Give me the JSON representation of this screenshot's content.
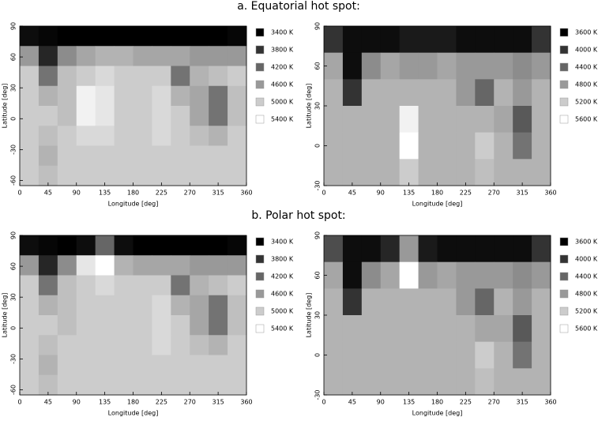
{
  "chart_data": [
    {
      "type": "heatmap",
      "title": "a. Equatorial hot spot:",
      "xlabel": "Longitude [deg]",
      "ylabel": "Latitude [deg]",
      "xlim": [
        0,
        360
      ],
      "xticks": [
        0,
        45,
        90,
        135,
        180,
        225,
        270,
        315,
        360
      ],
      "ylim": [
        -65,
        90
      ],
      "yticks": [
        -60,
        -30,
        0,
        30,
        60,
        90
      ],
      "zlim": [
        3400,
        5400
      ],
      "colorbar": [
        {
          "value": 3400,
          "label": "3400 K"
        },
        {
          "value": 3800,
          "label": "3800 K"
        },
        {
          "value": 4200,
          "label": "4200 K"
        },
        {
          "value": 4600,
          "label": "4600 K"
        },
        {
          "value": 5000,
          "label": "5000 K"
        },
        {
          "value": 5400,
          "label": "5400 K"
        }
      ],
      "z": [
        [
          3500,
          3450,
          3400,
          3400,
          3400,
          3400,
          3400,
          3400,
          3400,
          3400,
          3400,
          3450
        ],
        [
          4600,
          3700,
          4500,
          4700,
          4800,
          4800,
          4700,
          4700,
          4700,
          4600,
          4600,
          4600
        ],
        [
          5000,
          4300,
          4900,
          5000,
          5100,
          5000,
          5000,
          5000,
          4300,
          4800,
          4900,
          5000
        ],
        [
          5000,
          4800,
          4900,
          5300,
          5200,
          5000,
          5000,
          5100,
          4800,
          4700,
          4300,
          4900
        ],
        [
          5000,
          5000,
          4900,
          5300,
          5200,
          5000,
          5000,
          5100,
          5000,
          4700,
          4300,
          4900
        ],
        [
          5000,
          4900,
          5000,
          5100,
          5100,
          5000,
          5000,
          5100,
          5000,
          4900,
          4800,
          5000
        ],
        [
          5000,
          4800,
          5000,
          5000,
          5000,
          5000,
          5000,
          5000,
          5000,
          5000,
          5000,
          5000
        ],
        [
          5000,
          4900,
          5000,
          5000,
          5000,
          5000,
          5000,
          5000,
          5000,
          5000,
          5000,
          5000
        ]
      ]
    },
    {
      "type": "heatmap",
      "xlabel": "Longitude [deg]",
      "ylabel": "Latitude [deg]",
      "xlim": [
        0,
        360
      ],
      "xticks": [
        0,
        45,
        90,
        135,
        180,
        225,
        270,
        315,
        360
      ],
      "ylim": [
        -30,
        90
      ],
      "yticks": [
        -30,
        0,
        30,
        60,
        90
      ],
      "zlim": [
        3600,
        5600
      ],
      "colorbar": [
        {
          "value": 3600,
          "label": "3600 K"
        },
        {
          "value": 4000,
          "label": "4000 K"
        },
        {
          "value": 4400,
          "label": "4400 K"
        },
        {
          "value": 4800,
          "label": "4800 K"
        },
        {
          "value": 5200,
          "label": "5200 K"
        },
        {
          "value": 5600,
          "label": "5600 K"
        }
      ],
      "z": [
        [
          4000,
          3700,
          3700,
          3700,
          3800,
          3800,
          3800,
          3700,
          3700,
          3700,
          3700,
          4000
        ],
        [
          4900,
          3700,
          4700,
          4900,
          4800,
          4800,
          4900,
          4800,
          4800,
          4800,
          4700,
          4800
        ],
        [
          5000,
          4000,
          5000,
          5000,
          5000,
          5000,
          5000,
          4800,
          4400,
          5000,
          4800,
          5000
        ],
        [
          5000,
          5000,
          5000,
          5000,
          5500,
          5000,
          5000,
          5000,
          5000,
          4900,
          4300,
          5000
        ],
        [
          5000,
          5000,
          5000,
          5000,
          5600,
          5000,
          5000,
          5000,
          5200,
          5000,
          4500,
          5000
        ],
        [
          5000,
          5000,
          5000,
          5000,
          5200,
          5000,
          5000,
          5000,
          5100,
          5000,
          5000,
          5000
        ]
      ]
    },
    {
      "type": "heatmap",
      "title": "b. Polar hot spot:",
      "xlabel": "Longitude [deg]",
      "ylabel": "Latitude [deg]",
      "xlim": [
        0,
        360
      ],
      "xticks": [
        0,
        45,
        90,
        135,
        180,
        225,
        270,
        315,
        360
      ],
      "ylim": [
        -65,
        90
      ],
      "yticks": [
        -60,
        -30,
        0,
        30,
        60,
        90
      ],
      "zlim": [
        3400,
        5400
      ],
      "colorbar": [
        {
          "value": 3400,
          "label": "3400 K"
        },
        {
          "value": 3800,
          "label": "3800 K"
        },
        {
          "value": 4200,
          "label": "4200 K"
        },
        {
          "value": 4600,
          "label": "4600 K"
        },
        {
          "value": 5000,
          "label": "5000 K"
        },
        {
          "value": 5400,
          "label": "5400 K"
        }
      ],
      "z": [
        [
          3500,
          3450,
          3400,
          3500,
          4200,
          3500,
          3400,
          3400,
          3400,
          3400,
          3400,
          3450
        ],
        [
          4600,
          3700,
          4500,
          5200,
          5400,
          4800,
          4700,
          4700,
          4700,
          4600,
          4600,
          4600
        ],
        [
          5000,
          4300,
          4900,
          5000,
          5100,
          5000,
          5000,
          5000,
          4300,
          4800,
          4900,
          5000
        ],
        [
          5000,
          4800,
          4900,
          5000,
          5000,
          5000,
          5000,
          5100,
          4800,
          4700,
          4300,
          4900
        ],
        [
          5000,
          5000,
          4900,
          5000,
          5000,
          5000,
          5000,
          5100,
          5000,
          4700,
          4300,
          4900
        ],
        [
          5000,
          4900,
          5000,
          5000,
          5000,
          5000,
          5000,
          5100,
          5000,
          4900,
          4800,
          5000
        ],
        [
          5000,
          4800,
          5000,
          5000,
          5000,
          5000,
          5000,
          5000,
          5000,
          5000,
          5000,
          5000
        ],
        [
          5000,
          4900,
          5000,
          5000,
          5000,
          5000,
          5000,
          5000,
          5000,
          5000,
          5000,
          5000
        ]
      ]
    },
    {
      "type": "heatmap",
      "xlabel": "Longitude [deg]",
      "ylabel": "Latitude [deg]",
      "xlim": [
        0,
        360
      ],
      "xticks": [
        0,
        45,
        90,
        135,
        180,
        225,
        270,
        315,
        360
      ],
      "ylim": [
        -30,
        90
      ],
      "yticks": [
        -30,
        0,
        30,
        60,
        90
      ],
      "zlim": [
        3600,
        5600
      ],
      "colorbar": [
        {
          "value": 3600,
          "label": "3600 K"
        },
        {
          "value": 4000,
          "label": "4000 K"
        },
        {
          "value": 4400,
          "label": "4400 K"
        },
        {
          "value": 4800,
          "label": "4800 K"
        },
        {
          "value": 5200,
          "label": "5200 K"
        },
        {
          "value": 5600,
          "label": "5600 K"
        }
      ],
      "z": [
        [
          4200,
          3700,
          3700,
          3900,
          4800,
          3800,
          3700,
          3700,
          3700,
          3700,
          3700,
          4000
        ],
        [
          4900,
          3700,
          4700,
          4900,
          5600,
          4800,
          4900,
          4800,
          4800,
          4800,
          4700,
          4800
        ],
        [
          5000,
          4000,
          5000,
          5000,
          5000,
          5000,
          5000,
          4800,
          4400,
          5000,
          4800,
          5000
        ],
        [
          5000,
          5000,
          5000,
          5000,
          5000,
          5000,
          5000,
          5000,
          4900,
          4900,
          4300,
          5000
        ],
        [
          5000,
          5000,
          5000,
          5000,
          5000,
          5000,
          5000,
          5000,
          5200,
          5000,
          4500,
          5000
        ],
        [
          5000,
          5000,
          5000,
          5000,
          5000,
          5000,
          5000,
          5000,
          5100,
          5000,
          5000,
          5000
        ]
      ]
    }
  ]
}
